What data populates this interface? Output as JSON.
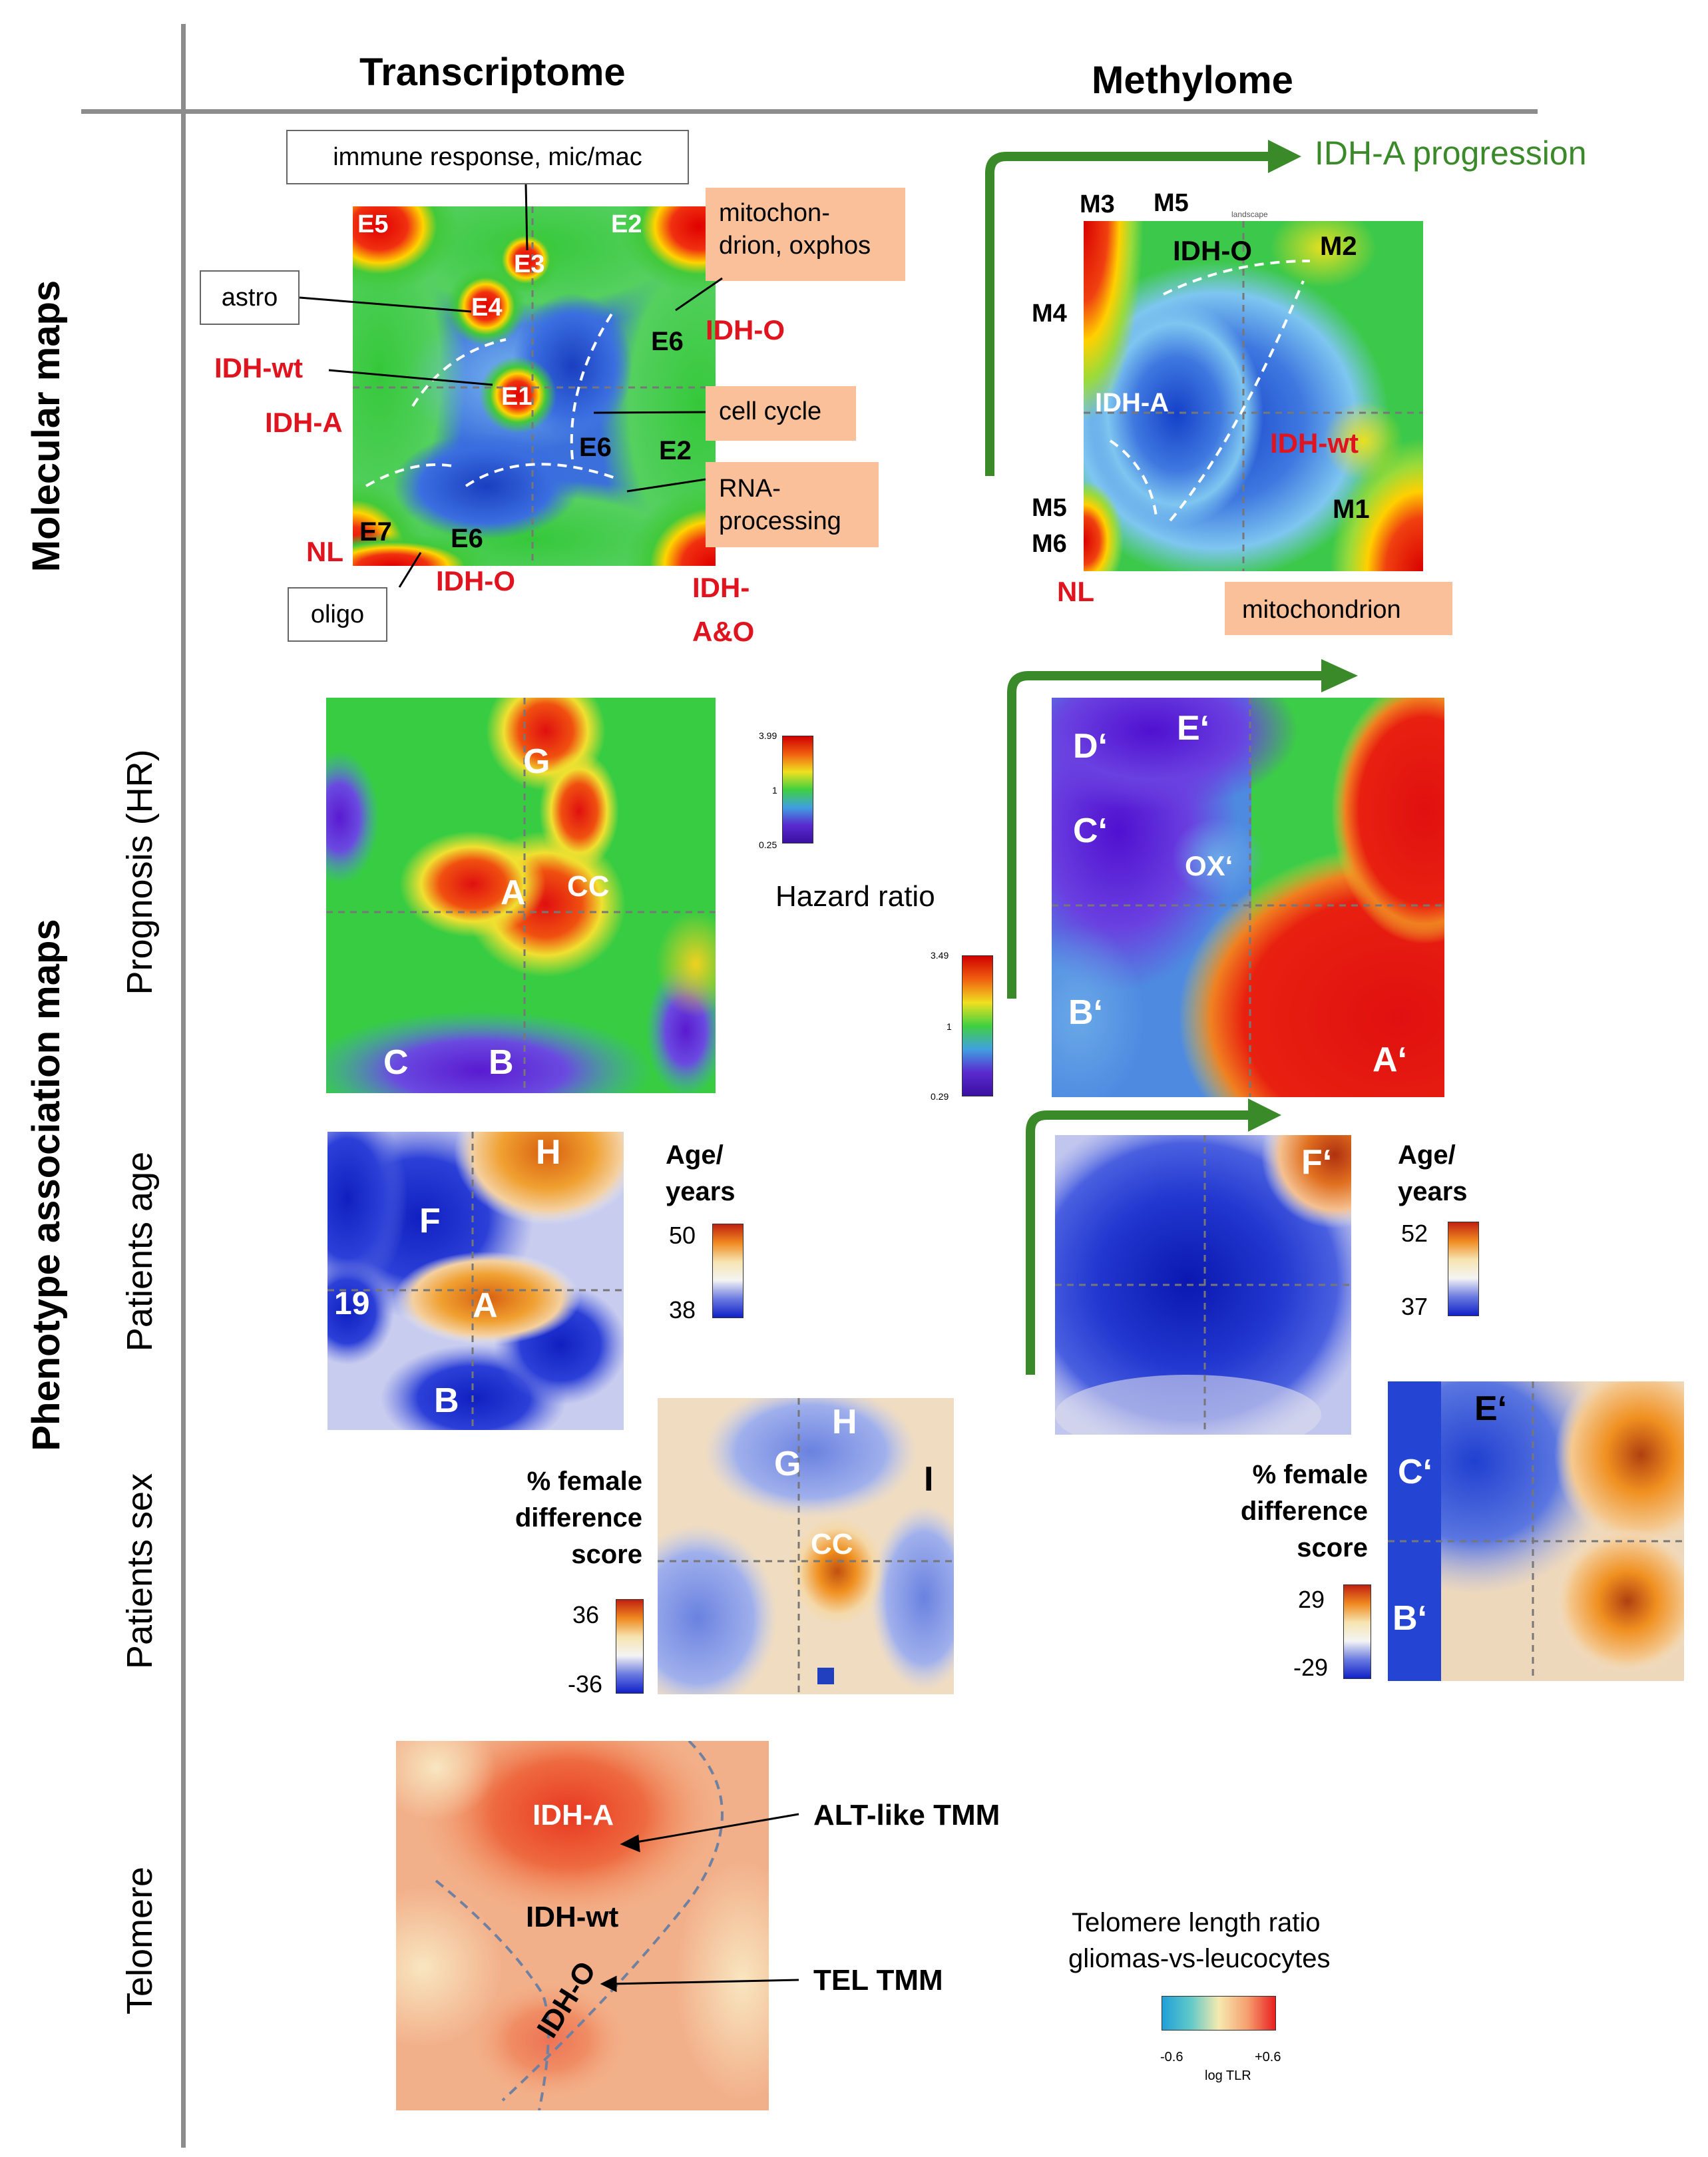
{
  "columns": {
    "transcriptome": "Transcriptome",
    "methylome": "Methylome"
  },
  "rows": {
    "molecular": "Molecular maps",
    "phenotype": "Phenotype association maps",
    "prognosis": "Prognosis (HR)",
    "age": "Patients age",
    "sex": "Patients sex",
    "telomere": "Telomere"
  },
  "tmap": {
    "boxes": {
      "immune": "immune response, mic/mac",
      "astro": "astro",
      "oligo": "oligo",
      "mito1": "mitochon-",
      "mito2": "drion, oxphos",
      "cellcycle": "cell cycle",
      "rna1": "RNA-",
      "rna2": "processing"
    },
    "labels": {
      "e5": "E5",
      "e2a": "E2",
      "e3": "E3",
      "e4": "E4",
      "e1": "E1",
      "e6a": "E6",
      "e6b": "E6",
      "e2b": "E2",
      "e7": "E7",
      "e6c": "E6",
      "idho1": "IDH-O",
      "idhwt": "IDH-wt",
      "idha": "IDH-A",
      "nl": "NL",
      "idho2": "IDH-O",
      "idhao1": "IDH-",
      "idhao2": "A&O"
    }
  },
  "mmap": {
    "progression": "IDH-A progression",
    "mito": "mitochondrion",
    "landscape": "landscape",
    "labels": {
      "m3": "M3",
      "m5a": "M5",
      "idho": "IDH-O",
      "m2": "M2",
      "m4": "M4",
      "idha": "IDH-A",
      "idhwt": "IDH-wt",
      "m5b": "M5",
      "m6": "M6",
      "m1": "M1",
      "nl": "NL"
    }
  },
  "prognosis": {
    "t_labels": {
      "g": "G",
      "a": "A",
      "cc": "CC",
      "c": "C",
      "b": "B"
    },
    "m_labels": {
      "d": "D‘",
      "e": "E‘",
      "c": "C‘",
      "ox": "OX‘",
      "b": "B‘",
      "a": "A‘"
    },
    "hazard": "Hazard ratio",
    "scale1": {
      "max": "3.99",
      "mid": "1",
      "min": "0.25"
    },
    "scale2": {
      "max": "3.49",
      "mid": "1",
      "min": "0.29"
    }
  },
  "age": {
    "t_labels": {
      "h": "H",
      "f": "F",
      "a": "A",
      "n19": "19",
      "b": "B"
    },
    "m_labels": {
      "f": "F‘"
    },
    "title1": "Age/",
    "title2": "years",
    "scale1": {
      "max": "50",
      "min": "38"
    },
    "scale2": {
      "max": "52",
      "min": "37"
    }
  },
  "sex": {
    "t_labels": {
      "h": "H",
      "g": "G",
      "i": "I",
      "cc": "CC"
    },
    "m_labels": {
      "e": "E‘",
      "c": "C‘",
      "b": "B‘"
    },
    "title1": "% female",
    "title2": "difference",
    "title3": "score",
    "scale1": {
      "max": "36",
      "min": "-36"
    },
    "scale2": {
      "max": "29",
      "min": "-29"
    }
  },
  "telomere": {
    "labels": {
      "idha": "IDH-A",
      "idhwt": "IDH-wt",
      "idho": "IDH-O"
    },
    "alt": "ALT-like TMM",
    "tel": "TEL TMM",
    "legend1": "Telomere length ratio",
    "legend2": "gliomas-vs-leucocytes",
    "min": "-0.6",
    "max": "+0.6",
    "unit": "log TLR"
  },
  "colors": {
    "red_label": "#e0141e",
    "green_arrow": "#3a8a2a",
    "orange_box": "#f9c09a"
  }
}
